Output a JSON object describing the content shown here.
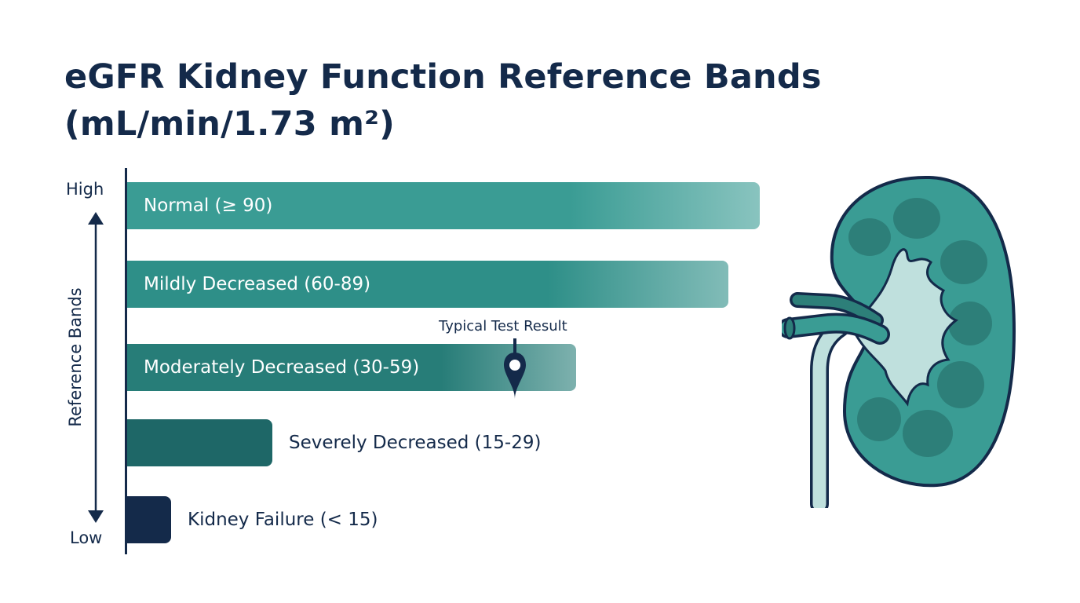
{
  "chart_data": {
    "type": "bar",
    "orientation": "horizontal",
    "title": "eGFR Kidney Function Reference Bands (mL/min/1.73 m²)",
    "ylabel": "Reference Bands",
    "y_axis_top_label": "High",
    "y_axis_bottom_label": "Low",
    "categories": [
      "Normal (≥ 90)",
      "Mildly Decreased (60-89)",
      "Moderately Decreased (30-59)",
      "Severely Decreased (15-29)",
      "Kidney Failure (< 15)"
    ],
    "values": [
      100,
      95,
      71,
      23,
      7
    ],
    "xlim": [
      0,
      100
    ],
    "colors": [
      "#3a9c94",
      "#2e8f88",
      "#277d78",
      "#1e6767",
      "#142a4a"
    ],
    "annotation": {
      "text": "Typical Test Result",
      "category": "Moderately Decreased (30-59)",
      "value": 61
    },
    "grid": false,
    "legend": "none"
  },
  "illustration": {
    "icon": "kidney-icon"
  }
}
